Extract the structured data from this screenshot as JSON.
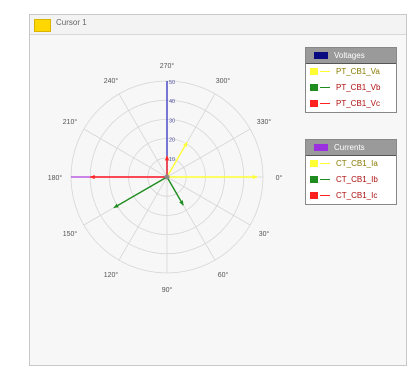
{
  "window": {
    "title": "Cursor 1",
    "title_swatch_color": "#FFD700"
  },
  "chart_data": {
    "type": "polar-phasor",
    "angle_labels": [
      {
        "deg": 0,
        "label": "0°"
      },
      {
        "deg": 30,
        "label": "30°"
      },
      {
        "deg": 60,
        "label": "60°"
      },
      {
        "deg": 90,
        "label": "90°"
      },
      {
        "deg": 120,
        "label": "120°"
      },
      {
        "deg": 150,
        "label": "150°"
      },
      {
        "deg": 180,
        "label": "180°"
      },
      {
        "deg": 210,
        "label": "210°"
      },
      {
        "deg": 240,
        "label": "240°"
      },
      {
        "deg": 270,
        "label": "270°"
      },
      {
        "deg": 300,
        "label": "300°"
      },
      {
        "deg": 330,
        "label": "330°"
      }
    ],
    "radial_ticks": [
      "10",
      "20",
      "30",
      "40",
      "50"
    ],
    "radial_max": 50,
    "grid": true,
    "groups": [
      {
        "name": "Voltages",
        "header_color": "#0A0A80",
        "series": [
          {
            "name": "PT_CB1_Va",
            "color": "#FFFF33",
            "angle": 300,
            "magnitude": 21
          },
          {
            "name": "PT_CB1_Vb",
            "color": "#1E8C1E",
            "angle": 150,
            "magnitude": 32
          },
          {
            "name": "PT_CB1_Vc",
            "color": "#FF2020",
            "angle": 270,
            "magnitude": 11
          }
        ]
      },
      {
        "name": "Currents",
        "header_color": "#9A30E0",
        "series": [
          {
            "name": "CT_CB1_Ia",
            "color": "#FFFF33",
            "angle": 0,
            "magnitude": 47
          },
          {
            "name": "CT_CB1_Ib",
            "color": "#1E8C1E",
            "angle": 60,
            "magnitude": 17
          },
          {
            "name": "CT_CB1_Ic",
            "color": "#FF2020",
            "angle": 180,
            "magnitude": 40
          }
        ]
      }
    ],
    "reference_lines": [
      {
        "color": "#3030C0",
        "angle": 270,
        "magnitude": 50
      },
      {
        "color": "#B040E0",
        "angle": 180,
        "magnitude": 50
      }
    ]
  }
}
